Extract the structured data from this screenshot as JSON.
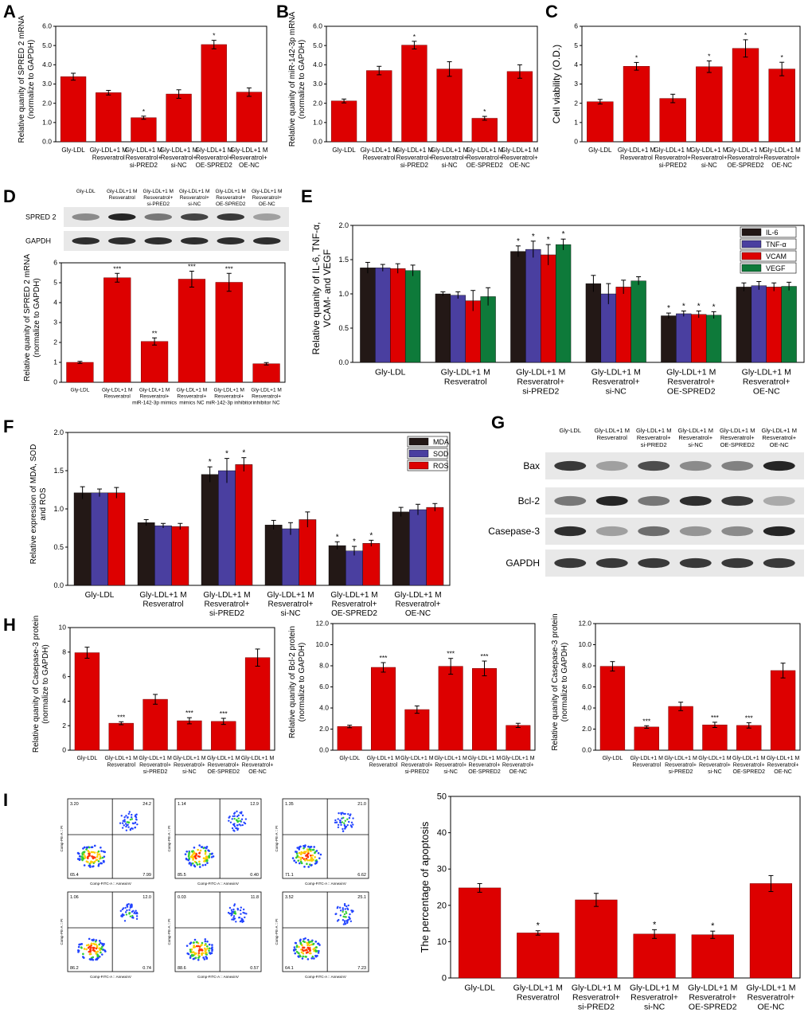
{
  "figure": {
    "panel_labels": [
      "A",
      "B",
      "C",
      "D",
      "E",
      "F",
      "G",
      "H",
      "I"
    ],
    "colors": {
      "bar": "#dd0000",
      "bar_edge": "#7a0000",
      "black_series": "#231816",
      "blue_series": "#4a3fa0",
      "green_series": "#0e7a3a",
      "blot_bg": "#e8e8e8",
      "band": "#1a1a1a"
    }
  },
  "chart_data": [
    {
      "id": "A",
      "type": "bar",
      "ylabel": [
        "Relative quanity of SPRED 2 mRNA",
        "(normalize to GAPDH)"
      ],
      "ylim": [
        0,
        6
      ],
      "yticks": [
        "0.0",
        "1.0",
        "2.0",
        "3.0",
        "4.0",
        "5.0",
        "6.0"
      ],
      "categories": [
        [
          "Gly-LDL"
        ],
        [
          "Gly-LDL+1 M",
          "Resveratrol"
        ],
        [
          "Gly-LDL+1 M",
          "Resveratrol+",
          "si-PRED2"
        ],
        [
          "Gly-LDL+1 M",
          "Resveratrol+",
          "si-NC"
        ],
        [
          "Gly-LDL+1 M",
          "Resveratrol+",
          "OE-SPRED2"
        ],
        [
          "Gly-LDL+1 M",
          "Resveratrol+",
          "OE-NC"
        ]
      ],
      "values": [
        3.38,
        2.55,
        1.25,
        2.48,
        5.05,
        2.58
      ],
      "errors": [
        0.18,
        0.12,
        0.08,
        0.22,
        0.22,
        0.22
      ],
      "annotations": [
        "",
        "",
        "*",
        "",
        "*",
        ""
      ]
    },
    {
      "id": "B",
      "type": "bar",
      "ylabel": [
        "Relative quanity of miR-142-3p mRNA",
        "(normalize to GAPDH)"
      ],
      "ylim": [
        0,
        6
      ],
      "yticks": [
        "0.0",
        "1.0",
        "2.0",
        "3.0",
        "4.0",
        "5.0",
        "6.0"
      ],
      "categories": [
        [
          "Gly-LDL"
        ],
        [
          "Gly-LDL+1 M",
          "Resveratrol"
        ],
        [
          "Gly-LDL+1 M",
          "Resveratrol+",
          "si-PRED2"
        ],
        [
          "Gly-LDL+1 M",
          "Resveratrol+",
          "si-NC"
        ],
        [
          "Gly-LDL+1 M",
          "Resveratrol+",
          "OE-SPRED2"
        ],
        [
          "Gly-LDL+1 M",
          "Resveratrol+",
          "OE-NC"
        ]
      ],
      "values": [
        2.12,
        3.7,
        5.02,
        3.78,
        1.22,
        3.65
      ],
      "errors": [
        0.1,
        0.22,
        0.2,
        0.38,
        0.1,
        0.35
      ],
      "annotations": [
        "",
        "",
        "*",
        "",
        "*",
        ""
      ]
    },
    {
      "id": "C",
      "type": "bar",
      "ylabel": [
        "Cell viability  (O.D.)"
      ],
      "ylim": [
        0,
        6
      ],
      "yticks": [
        "0",
        "1",
        "2",
        "3",
        "4",
        "5",
        "6"
      ],
      "categories": [
        [
          "Gly-LDL"
        ],
        [
          "Gly-LDL+1 M",
          "Resveratrol"
        ],
        [
          "Gly-LDL+1 M",
          "Resveratrol+",
          "si-PRED2"
        ],
        [
          "Gly-LDL+1 M",
          "Resveratrol+",
          "si-NC"
        ],
        [
          "Gly-LDL+1 M",
          "Resveratrol+",
          "OE-SPRED2"
        ],
        [
          "Gly-LDL+1 M",
          "Resveratrol+",
          "OE-NC"
        ]
      ],
      "values": [
        2.08,
        3.92,
        2.25,
        3.9,
        4.85,
        3.78
      ],
      "errors": [
        0.12,
        0.2,
        0.22,
        0.3,
        0.45,
        0.35
      ],
      "annotations": [
        "",
        "*",
        "",
        "*",
        "*",
        "*"
      ]
    },
    {
      "id": "D",
      "type": "bar",
      "ylabel": [
        "Relative quanity of SPRED 2 mRNA",
        "(normalize to GAPDH)"
      ],
      "ylim": [
        0,
        6
      ],
      "yticks": [
        "0",
        "1",
        "2",
        "3",
        "4",
        "5",
        "6"
      ],
      "categories": [
        [
          "Gly-LDL"
        ],
        [
          "Gly-LDL+1 M",
          "Resveratrol"
        ],
        [
          "Gly-LDL+1 M",
          "Resveratrol+",
          "miR-142-3p mimics"
        ],
        [
          "Gly-LDL+1 M",
          "Resveratrol+",
          "mimics NC"
        ],
        [
          "Gly-LDL+1 M",
          "Resveratrol+",
          "miR-142-3p inhibitor"
        ],
        [
          "Gly-LDL+1 M",
          "Resveratrol+",
          "inhibitor NC"
        ]
      ],
      "values": [
        1.0,
        5.25,
        2.05,
        5.18,
        5.02,
        0.93
      ],
      "errors": [
        0.05,
        0.22,
        0.18,
        0.4,
        0.45,
        0.06
      ],
      "annotations": [
        "",
        "***",
        "**",
        "***",
        "***",
        ""
      ]
    },
    {
      "id": "E",
      "type": "bar",
      "ylabel": [
        "Relative quanity of IL-6, TNF-α,",
        "VCAM-  and VEGF"
      ],
      "ylim": [
        0,
        2
      ],
      "yticks": [
        "0.0",
        "0.5",
        "1.0",
        "1.5",
        "2.0"
      ],
      "categories": [
        [
          "Gly-LDL"
        ],
        [
          "Gly-LDL+1 M",
          "Resveratrol"
        ],
        [
          "Gly-LDL+1 M",
          "Resveratrol+",
          "si-PRED2"
        ],
        [
          "Gly-LDL+1 M",
          "Resveratrol+",
          "si-NC"
        ],
        [
          "Gly-LDL+1 M",
          "Resveratrol+",
          "OE-SPRED2"
        ],
        [
          "Gly-LDL+1 M",
          "Resveratrol+",
          "OE-NC"
        ]
      ],
      "legend": [
        "IL-6",
        "TNF-α",
        "VCAM",
        "VEGF"
      ],
      "series": [
        {
          "name": "IL-6",
          "values": [
            1.38,
            1.0,
            1.62,
            1.15,
            0.68,
            1.1
          ],
          "errors": [
            0.08,
            0.03,
            0.08,
            0.12,
            0.04,
            0.06
          ],
          "annotations": [
            "",
            "",
            "*",
            "",
            "*",
            ""
          ]
        },
        {
          "name": "TNF-α",
          "values": [
            1.38,
            0.98,
            1.65,
            1.0,
            0.71,
            1.12
          ],
          "errors": [
            0.05,
            0.05,
            0.12,
            0.15,
            0.04,
            0.06
          ],
          "annotations": [
            "",
            "",
            "*",
            "",
            "*",
            ""
          ]
        },
        {
          "name": "VCAM",
          "values": [
            1.37,
            0.9,
            1.57,
            1.1,
            0.7,
            1.1
          ],
          "errors": [
            0.07,
            0.15,
            0.15,
            0.1,
            0.05,
            0.06
          ],
          "annotations": [
            "",
            "",
            "*",
            "",
            "*",
            ""
          ]
        },
        {
          "name": "VEGF",
          "values": [
            1.34,
            0.96,
            1.72,
            1.19,
            0.69,
            1.11
          ],
          "errors": [
            0.08,
            0.13,
            0.08,
            0.06,
            0.05,
            0.06
          ],
          "annotations": [
            "",
            "",
            "*",
            "",
            "*",
            ""
          ]
        }
      ]
    },
    {
      "id": "F",
      "type": "bar",
      "ylabel": [
        "Relative expression of MDA, SOD",
        "and ROS"
      ],
      "ylim": [
        0,
        2
      ],
      "yticks": [
        "0.0",
        "0.5",
        "1.0",
        "1.5",
        "2.0"
      ],
      "categories": [
        [
          "Gly-LDL"
        ],
        [
          "Gly-LDL+1 M",
          "Resveratrol"
        ],
        [
          "Gly-LDL+1 M",
          "Resveratrol+",
          "si-PRED2"
        ],
        [
          "Gly-LDL+1 M",
          "Resveratrol+",
          "si-NC"
        ],
        [
          "Gly-LDL+1 M",
          "Resveratrol+",
          "OE-SPRED2"
        ],
        [
          "Gly-LDL+1 M",
          "Resveratrol+",
          "OE-NC"
        ]
      ],
      "legend": [
        "MDA",
        "SOD",
        "ROS"
      ],
      "series": [
        {
          "name": "MDA",
          "values": [
            1.21,
            0.82,
            1.45,
            0.79,
            0.52,
            0.96
          ],
          "errors": [
            0.08,
            0.04,
            0.1,
            0.06,
            0.05,
            0.06
          ],
          "annotations": [
            "",
            "",
            "*",
            "",
            "*",
            ""
          ]
        },
        {
          "name": "SOD",
          "values": [
            1.21,
            0.78,
            1.5,
            0.74,
            0.45,
            0.99
          ],
          "errors": [
            0.05,
            0.03,
            0.16,
            0.08,
            0.06,
            0.07
          ],
          "annotations": [
            "",
            "",
            "*",
            "",
            "*",
            ""
          ]
        },
        {
          "name": "ROS",
          "values": [
            1.21,
            0.77,
            1.58,
            0.86,
            0.55,
            1.02
          ],
          "errors": [
            0.07,
            0.04,
            0.09,
            0.1,
            0.04,
            0.05
          ],
          "annotations": [
            "",
            "",
            "*",
            "",
            "*",
            ""
          ]
        }
      ]
    },
    {
      "id": "H1",
      "type": "bar",
      "ylabel": [
        "Relative quanity of Casepase-3  protein",
        "(normalize to GAPDH)"
      ],
      "ylim": [
        0,
        10
      ],
      "yticks": [
        "0",
        "2",
        "4",
        "6",
        "8",
        "10"
      ],
      "categories": [
        [
          "Gly-LDL"
        ],
        [
          "Gly-LDL+1 M",
          "Resveratrol"
        ],
        [
          "Gly-LDL+1 M",
          "Resveratrol+",
          "si-PRED2"
        ],
        [
          "Gly-LDL+1 M",
          "Resveratrol+",
          "si-NC"
        ],
        [
          "Gly-LDL+1 M",
          "Resveratrol+",
          "OE-SPRED2"
        ],
        [
          "Gly-LDL+1 M",
          "Resveratrol+",
          "OE-NC"
        ]
      ],
      "values": [
        7.95,
        2.2,
        4.15,
        2.4,
        2.35,
        7.55
      ],
      "errors": [
        0.45,
        0.12,
        0.4,
        0.25,
        0.25,
        0.7
      ],
      "annotations": [
        "",
        "***",
        "",
        "***",
        "***",
        ""
      ]
    },
    {
      "id": "H2",
      "type": "bar",
      "ylabel": [
        "Relative quanity of Bcl-2 protein",
        "(normalize to GAPDH)"
      ],
      "ylim": [
        0,
        12
      ],
      "yticks": [
        "0.0",
        "2.0",
        "4.0",
        "6.0",
        "8.0",
        "10.0",
        "12.0"
      ],
      "categories": [
        [
          "Gly-LDL"
        ],
        [
          "Gly-LDL+1 M",
          "Resveratrol"
        ],
        [
          "Gly-LDL+1 M",
          "Resveratrol+",
          "si-PRED2"
        ],
        [
          "Gly-LDL+1 M",
          "Resveratrol+",
          "si-NC"
        ],
        [
          "Gly-LDL+1 M",
          "Resveratrol+",
          "OE-SPRED2"
        ],
        [
          "Gly-LDL+1 M",
          "Resveratrol+",
          "OE-NC"
        ]
      ],
      "values": [
        2.25,
        7.85,
        3.85,
        7.95,
        7.75,
        2.35
      ],
      "errors": [
        0.12,
        0.45,
        0.35,
        0.75,
        0.7,
        0.2
      ],
      "annotations": [
        "",
        "***",
        "",
        "***",
        "***",
        ""
      ]
    },
    {
      "id": "H3",
      "type": "bar",
      "ylabel": [
        "Relative quanity of Casepase-3  protein",
        "(normalize to GAPDH)"
      ],
      "ylim": [
        0,
        12
      ],
      "yticks": [
        "0.0",
        "2.0",
        "4.0",
        "6.0",
        "8.0",
        "10.0",
        "12.0"
      ],
      "categories": [
        [
          "Gly-LDL"
        ],
        [
          "Gly-LDL+1 M",
          "Resveratrol"
        ],
        [
          "Gly-LDL+1 M",
          "Resveratrol+",
          "si-PRED2"
        ],
        [
          "Gly-LDL+1 M",
          "Resveratrol+",
          "si-NC"
        ],
        [
          "Gly-LDL+1 M",
          "Resveratrol+",
          "OE-SPRED2"
        ],
        [
          "Gly-LDL+1 M",
          "Resveratrol+",
          "OE-NC"
        ]
      ],
      "values": [
        7.95,
        2.2,
        4.15,
        2.4,
        2.35,
        7.55
      ],
      "errors": [
        0.45,
        0.12,
        0.4,
        0.25,
        0.25,
        0.7
      ],
      "annotations": [
        "",
        "***",
        "",
        "***",
        "***",
        ""
      ]
    },
    {
      "id": "I",
      "type": "bar",
      "ylabel": [
        "The percentage of apoptosis"
      ],
      "ylim": [
        0,
        50
      ],
      "yticks": [
        "0",
        "10",
        "20",
        "30",
        "40",
        "50"
      ],
      "categories": [
        [
          "Gly-LDL"
        ],
        [
          "Gly-LDL+1 M",
          "Resveratrol"
        ],
        [
          "Gly-LDL+1 M",
          "Resveratrol+",
          "si-PRED2"
        ],
        [
          "Gly-LDL+1 M",
          "Resveratrol+",
          "si-NC"
        ],
        [
          "Gly-LDL+1 M",
          "Resveratrol+",
          "OE-SPRED2"
        ],
        [
          "Gly-LDL+1 M",
          "Resveratrol+",
          "OE-NC"
        ]
      ],
      "values": [
        24.8,
        12.4,
        21.5,
        12.1,
        11.9,
        26.0
      ],
      "errors": [
        1.2,
        0.6,
        1.8,
        1.2,
        1.0,
        2.2
      ],
      "annotations": [
        "",
        "*",
        "",
        "*",
        "*",
        ""
      ]
    }
  ],
  "blots": {
    "D": {
      "lane_labels": [
        [
          "Gly-LDL"
        ],
        [
          "Gly-LDL+1 M",
          "Resveratrol"
        ],
        [
          "Gly-LDL+1 M",
          "Resveratrol+",
          "si-PRED2"
        ],
        [
          "Gly-LDL+1 M",
          "Resveratrol+",
          "si-NC"
        ],
        [
          "Gly-LDL+1 M",
          "Resveratrol+",
          "OE-SPRED2"
        ],
        [
          "Gly-LDL+1 M",
          "Resveratrol+",
          "OE-NC"
        ]
      ],
      "rows": [
        {
          "label": "SPRED 2",
          "intensity": [
            0.45,
            0.95,
            0.55,
            0.8,
            0.85,
            0.35
          ]
        },
        {
          "label": "GAPDH",
          "intensity": [
            0.9,
            0.9,
            0.9,
            0.9,
            0.9,
            0.9
          ]
        }
      ]
    },
    "G": {
      "lane_labels": [
        [
          "Gly-LDL"
        ],
        [
          "Gly-LDL+1 M",
          "Resveratrol"
        ],
        [
          "Gly-LDL+1 M",
          "Resveratrol+",
          "si-PRED2"
        ],
        [
          "Gly-LDL+1 M",
          "Resveratrol+",
          "si-NC"
        ],
        [
          "Gly-LDL+1 M",
          "Resveratrol+",
          "OE-SPRED2"
        ],
        [
          "Gly-LDL+1 M",
          "Resveratrol+",
          "OE-NC"
        ]
      ],
      "rows": [
        {
          "label": "Bax",
          "intensity": [
            0.85,
            0.35,
            0.75,
            0.45,
            0.5,
            0.95
          ]
        },
        {
          "label": "Bcl-2",
          "intensity": [
            0.55,
            0.95,
            0.55,
            0.9,
            0.85,
            0.3
          ]
        },
        {
          "label": "Casepase-3",
          "intensity": [
            0.9,
            0.35,
            0.6,
            0.4,
            0.45,
            0.95
          ]
        },
        {
          "label": "GAPDH",
          "intensity": [
            0.85,
            0.85,
            0.85,
            0.85,
            0.85,
            0.85
          ]
        }
      ]
    }
  },
  "flow": {
    "plots": [
      {
        "q": [
          "3.20",
          "24.2",
          "65.4",
          "7.99"
        ]
      },
      {
        "q": [
          "1.14",
          "12.9",
          "85.5",
          "0.40"
        ]
      },
      {
        "q": [
          "1.35",
          "21.0",
          "71.1",
          "6.62"
        ]
      },
      {
        "q": [
          "1.06",
          "12.0",
          "86.2",
          "0.74"
        ]
      },
      {
        "q": [
          "0.03",
          "11.8",
          "88.6",
          "0.57"
        ]
      },
      {
        "q": [
          "3.52",
          "25.1",
          "64.1",
          "7.23"
        ]
      }
    ],
    "xlabel": "Comp-FITC-A :: AnnexinV",
    "ylabel": "Comp-PE-A :: PI"
  }
}
